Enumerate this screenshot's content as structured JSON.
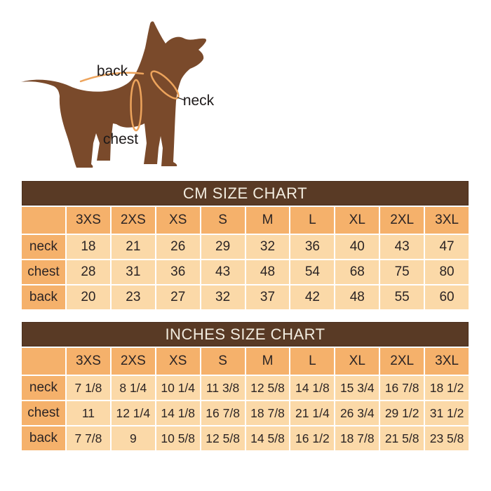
{
  "figure": {
    "labels": {
      "back": "back",
      "neck": "neck",
      "chest": "chest"
    }
  },
  "colors": {
    "background": "#ffffff",
    "title_bar_bg": "#593a25",
    "title_bar_border": "#4a2f1d",
    "title_text": "#f2ecdf",
    "header_cell_bg": "#f5b16b",
    "data_cell_bg": "#fbd9a8",
    "cell_text": "#2b2424",
    "dog_body": "#7a4a2b",
    "measure_line": "#eda45c",
    "figure_label_text": "#1e1a1a"
  },
  "chart_data": [
    {
      "type": "table",
      "title": "CM SIZE CHART",
      "columns": [
        "",
        "3XS",
        "2XS",
        "XS",
        "S",
        "M",
        "L",
        "XL",
        "2XL",
        "3XL"
      ],
      "rows": [
        [
          "neck",
          18,
          21,
          26,
          29,
          32,
          36,
          40,
          43,
          47
        ],
        [
          "chest",
          28,
          31,
          36,
          43,
          48,
          54,
          68,
          75,
          80
        ],
        [
          "back",
          20,
          23,
          27,
          32,
          37,
          42,
          48,
          55,
          60
        ]
      ]
    },
    {
      "type": "table",
      "title": "INCHES SIZE CHART",
      "columns": [
        "",
        "3XS",
        "2XS",
        "XS",
        "S",
        "M",
        "L",
        "XL",
        "2XL",
        "3XL"
      ],
      "rows": [
        [
          "neck",
          "7 1/8",
          "8 1/4",
          "10 1/4",
          "11 3/8",
          "12 5/8",
          "14 1/8",
          "15 3/4",
          "16 7/8",
          "18 1/2"
        ],
        [
          "chest",
          "11",
          "12 1/4",
          "14 1/8",
          "16 7/8",
          "18 7/8",
          "21 1/4",
          "26 3/4",
          "29 1/2",
          "31 1/2"
        ],
        [
          "back",
          "7 7/8",
          "9",
          "10 5/8",
          "12 5/8",
          "14 5/8",
          "16 1/2",
          "18 7/8",
          "21 5/8",
          "23 5/8"
        ]
      ]
    }
  ]
}
